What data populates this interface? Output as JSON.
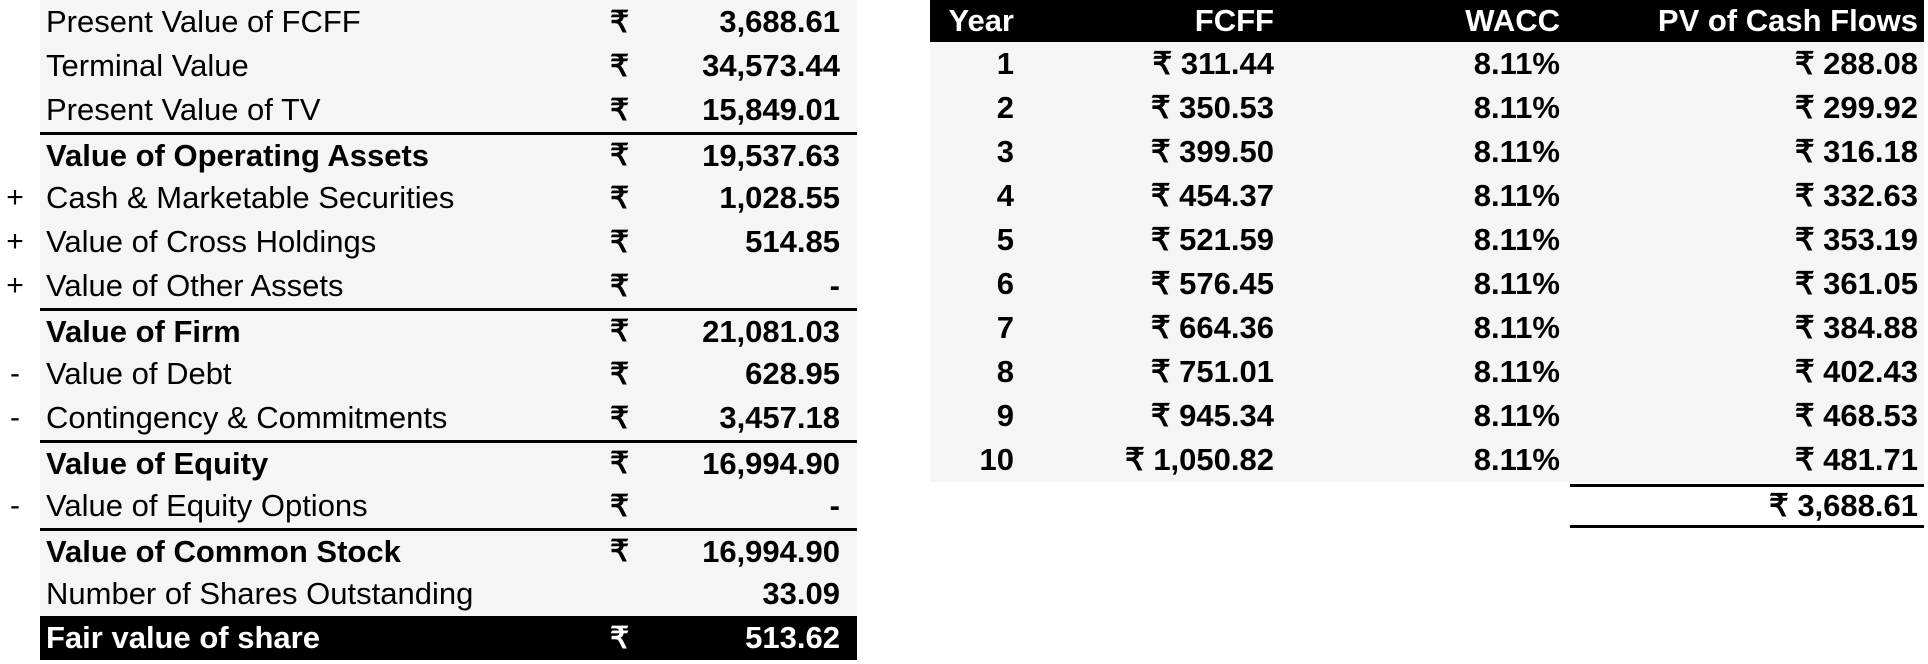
{
  "valuation": [
    {
      "sign": "",
      "label": "Present Value of FCFF",
      "currency": "₹",
      "value": "3,688.61",
      "bold": false,
      "top_border": false
    },
    {
      "sign": "",
      "label": "Terminal Value",
      "currency": "₹",
      "value": "34,573.44",
      "bold": false,
      "top_border": false
    },
    {
      "sign": "",
      "label": "Present Value of TV",
      "currency": "₹",
      "value": "15,849.01",
      "bold": false,
      "top_border": false
    },
    {
      "sign": "",
      "label": "Value of Operating Assets",
      "currency": "₹",
      "value": "19,537.63",
      "bold": true,
      "top_border": true
    },
    {
      "sign": "+",
      "label": "Cash & Marketable Securities",
      "currency": "₹",
      "value": "1,028.55",
      "bold": false,
      "top_border": false
    },
    {
      "sign": "+",
      "label": "Value of Cross Holdings",
      "currency": "₹",
      "value": "514.85",
      "bold": false,
      "top_border": false
    },
    {
      "sign": "+",
      "label": "Value of Other Assets",
      "currency": "₹",
      "value": "-",
      "bold": false,
      "top_border": false
    },
    {
      "sign": "",
      "label": "Value of Firm",
      "currency": "₹",
      "value": "21,081.03",
      "bold": true,
      "top_border": true
    },
    {
      "sign": "-",
      "label": "Value of Debt",
      "currency": "₹",
      "value": "628.95",
      "bold": false,
      "top_border": false
    },
    {
      "sign": "-",
      "label": "Contingency & Commitments",
      "currency": "₹",
      "value": "3,457.18",
      "bold": false,
      "top_border": false
    },
    {
      "sign": "",
      "label": "Value of Equity",
      "currency": "₹",
      "value": "16,994.90",
      "bold": true,
      "top_border": true
    },
    {
      "sign": "-",
      "label": "Value of Equity Options",
      "currency": "₹",
      "value": "-",
      "bold": false,
      "top_border": false
    },
    {
      "sign": "",
      "label": "Value of Common Stock",
      "currency": "₹",
      "value": "16,994.90",
      "bold": true,
      "top_border": true
    },
    {
      "sign": "",
      "label": "Number of Shares Outstanding",
      "currency": "",
      "value": "33.09",
      "bold": false,
      "top_border": false
    },
    {
      "sign": "",
      "label": "Fair value of share",
      "currency": "₹",
      "value": "513.62",
      "bold": true,
      "top_border": false,
      "dark": true
    }
  ],
  "cashflows": {
    "headers": {
      "year": "Year",
      "fcff": "FCFF",
      "wacc": "WACC",
      "pv": "PV of Cash Flows"
    },
    "rows": [
      {
        "year": "1",
        "fcff": "₹ 311.44",
        "wacc": "8.11%",
        "pv": "₹ 288.08"
      },
      {
        "year": "2",
        "fcff": "₹ 350.53",
        "wacc": "8.11%",
        "pv": "₹ 299.92"
      },
      {
        "year": "3",
        "fcff": "₹ 399.50",
        "wacc": "8.11%",
        "pv": "₹ 316.18"
      },
      {
        "year": "4",
        "fcff": "₹ 454.37",
        "wacc": "8.11%",
        "pv": "₹ 332.63"
      },
      {
        "year": "5",
        "fcff": "₹ 521.59",
        "wacc": "8.11%",
        "pv": "₹ 353.19"
      },
      {
        "year": "6",
        "fcff": "₹ 576.45",
        "wacc": "8.11%",
        "pv": "₹ 361.05"
      },
      {
        "year": "7",
        "fcff": "₹ 664.36",
        "wacc": "8.11%",
        "pv": "₹ 384.88"
      },
      {
        "year": "8",
        "fcff": "₹ 751.01",
        "wacc": "8.11%",
        "pv": "₹ 402.43"
      },
      {
        "year": "9",
        "fcff": "₹ 945.34",
        "wacc": "8.11%",
        "pv": "₹ 468.53"
      },
      {
        "year": "10",
        "fcff": "₹ 1,050.82",
        "wacc": "8.11%",
        "pv": "₹ 481.71"
      }
    ],
    "total": "₹ 3,688.61"
  },
  "colors": {
    "header_bg": "#000000",
    "cell_bg": "#f5f5f5",
    "text": "#000000"
  }
}
